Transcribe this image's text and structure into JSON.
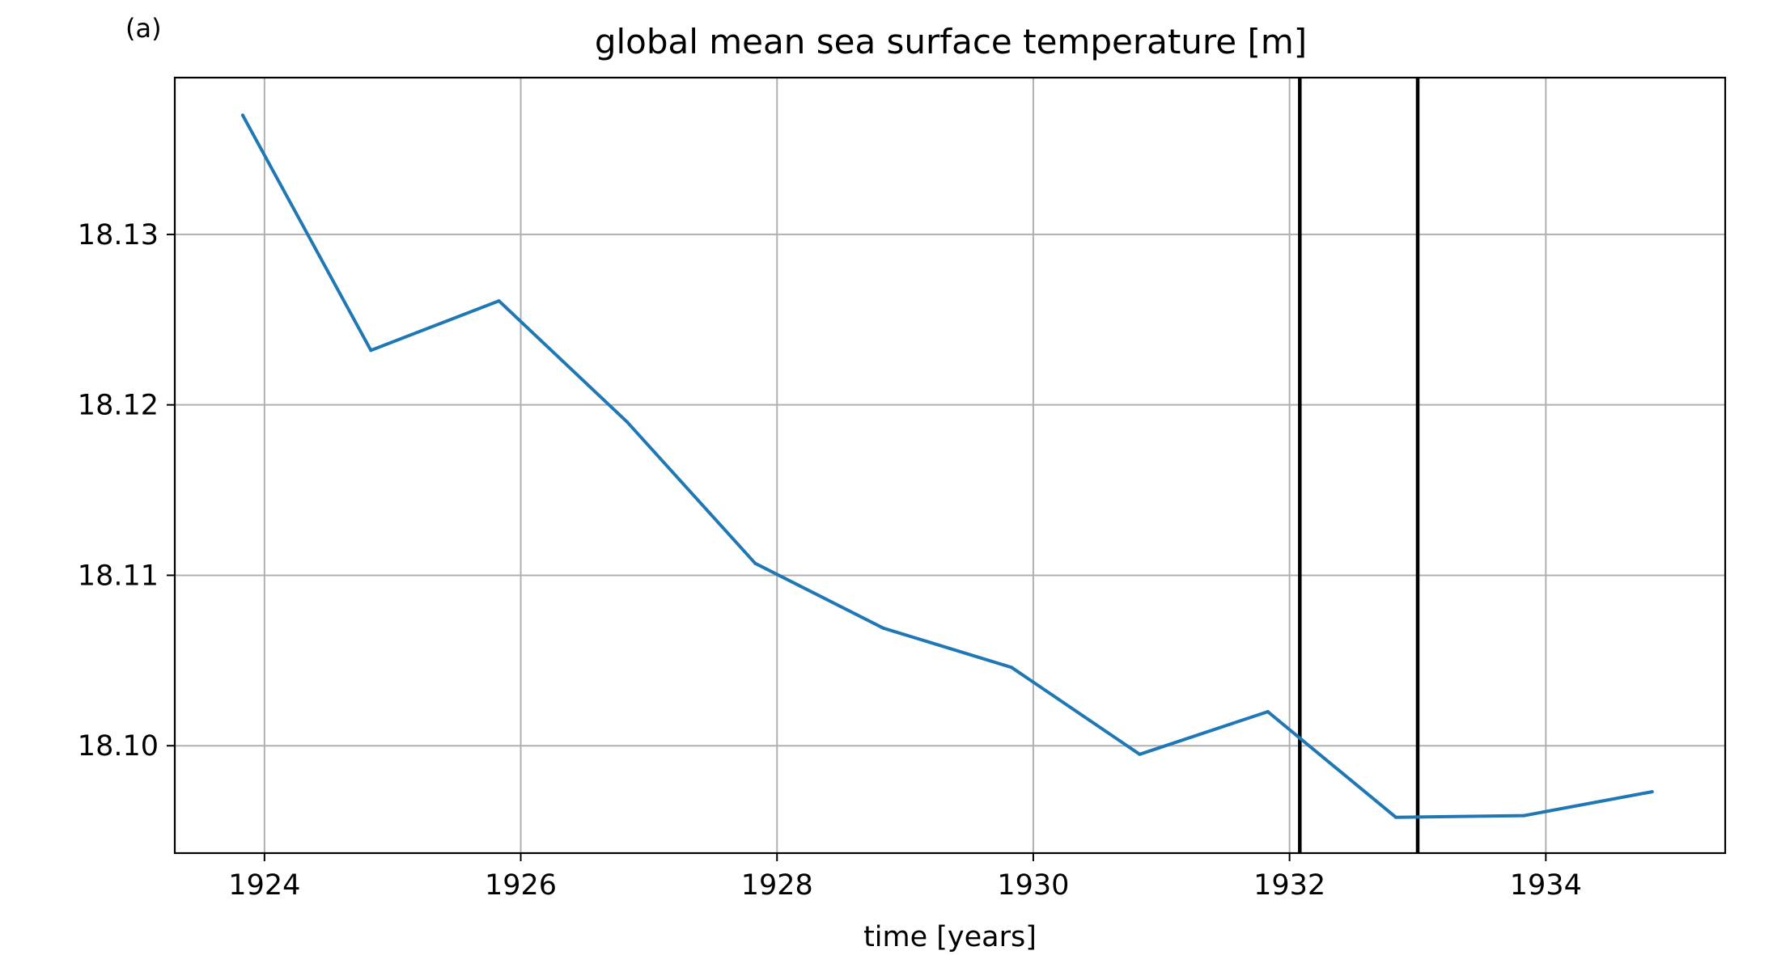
{
  "panel_label": "(a)",
  "chart_data": {
    "type": "line",
    "title": "global mean sea surface temperature [m]",
    "xlabel": "time [years]",
    "ylabel": "",
    "xlim": [
      1923.3,
      1935.4
    ],
    "ylim": [
      18.0937,
      18.1392
    ],
    "xticks": [
      1924,
      1926,
      1928,
      1930,
      1932,
      1934
    ],
    "xtick_labels": [
      "1924",
      "1926",
      "1928",
      "1930",
      "1932",
      "1934"
    ],
    "yticks": [
      18.1,
      18.11,
      18.12,
      18.13
    ],
    "ytick_labels": [
      "18.10",
      "18.11",
      "18.12",
      "18.13"
    ],
    "grid": true,
    "series": [
      {
        "color": "#1f77b4",
        "x": [
          1923.83,
          1924.83,
          1925.83,
          1926.83,
          1927.83,
          1928.83,
          1929.83,
          1930.83,
          1931.83,
          1932.83,
          1933.83,
          1934.83
        ],
        "y": [
          18.137,
          18.1232,
          18.1261,
          18.119,
          18.1107,
          18.1069,
          18.1046,
          18.0995,
          18.102,
          18.0958,
          18.0959,
          18.0973
        ]
      }
    ],
    "vertical_lines": [
      {
        "x": 1932.08,
        "color": "#000000"
      },
      {
        "x": 1933.0,
        "color": "#000000"
      }
    ]
  }
}
